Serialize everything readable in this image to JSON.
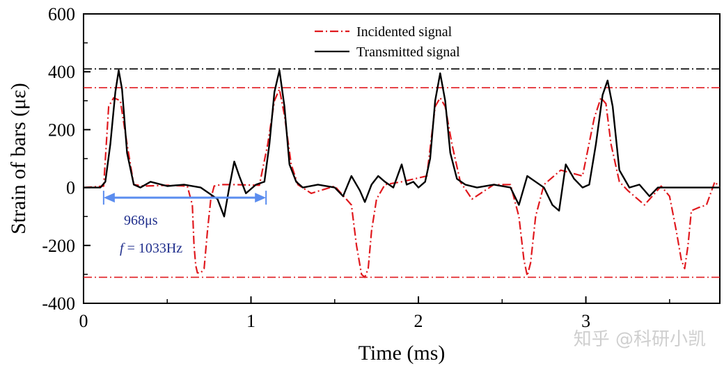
{
  "chart_data": {
    "type": "line",
    "xlabel": "Time (ms)",
    "ylabel": "Strain of bars (με)",
    "xlim": [
      0,
      3.8
    ],
    "ylim": [
      -400,
      600
    ],
    "xticks": [
      0,
      1,
      2,
      3
    ],
    "xtick_labels": [
      "0",
      "1",
      "2",
      "3"
    ],
    "yticks": [
      -400,
      -200,
      0,
      200,
      400,
      600
    ],
    "ytick_labels": [
      "-400",
      "-200",
      "0",
      "200",
      "400",
      "600"
    ],
    "grid": false,
    "legend": "top-center",
    "colors": {
      "incident": "#e0191e",
      "transmitted": "#000000",
      "annotation": "#5b8def",
      "annotation_text": "#1f2e8c"
    },
    "series": [
      {
        "name": "Incidented signal",
        "style": "dashdot",
        "x": [
          0,
          0.12,
          0.15,
          0.18,
          0.22,
          0.26,
          0.3,
          0.36,
          0.5,
          0.62,
          0.65,
          0.66,
          0.67,
          0.68,
          0.7,
          0.72,
          0.74,
          0.76,
          0.78,
          0.82,
          0.9,
          1.05,
          1.1,
          1.14,
          1.17,
          1.2,
          1.24,
          1.28,
          1.36,
          1.5,
          1.6,
          1.63,
          1.66,
          1.68,
          1.7,
          1.72,
          1.75,
          1.8,
          1.9,
          2.05,
          2.1,
          2.13,
          2.16,
          2.2,
          2.25,
          2.32,
          2.45,
          2.55,
          2.6,
          2.63,
          2.65,
          2.67,
          2.7,
          2.75,
          2.85,
          2.98,
          3.05,
          3.09,
          3.12,
          3.15,
          3.2,
          3.25,
          3.35,
          3.45,
          3.5,
          3.54,
          3.57,
          3.59,
          3.61,
          3.63,
          3.67,
          3.72,
          3.77,
          3.8
        ],
        "y": [
          0,
          5,
          280,
          310,
          300,
          150,
          10,
          5,
          8,
          5,
          -60,
          -200,
          -270,
          -295,
          -295,
          -280,
          -150,
          -40,
          5,
          10,
          10,
          8,
          150,
          300,
          340,
          250,
          80,
          10,
          -20,
          5,
          -60,
          -200,
          -300,
          -310,
          -280,
          -150,
          -40,
          10,
          20,
          40,
          280,
          310,
          280,
          150,
          20,
          -40,
          10,
          10,
          -100,
          -250,
          -305,
          -260,
          -100,
          10,
          60,
          40,
          240,
          310,
          290,
          150,
          20,
          -10,
          -60,
          5,
          -30,
          -150,
          -250,
          -280,
          -200,
          -80,
          -70,
          -60,
          20,
          0
        ]
      },
      {
        "name": "Transmitted signal",
        "style": "solid",
        "x": [
          0,
          0.1,
          0.13,
          0.16,
          0.19,
          0.21,
          0.23,
          0.26,
          0.3,
          0.34,
          0.4,
          0.5,
          0.6,
          0.7,
          0.8,
          0.84,
          0.87,
          0.9,
          0.93,
          0.97,
          1.03,
          1.08,
          1.11,
          1.14,
          1.17,
          1.2,
          1.23,
          1.27,
          1.31,
          1.4,
          1.5,
          1.55,
          1.6,
          1.65,
          1.68,
          1.72,
          1.76,
          1.8,
          1.85,
          1.9,
          1.93,
          1.97,
          2.0,
          2.04,
          2.07,
          2.1,
          2.13,
          2.16,
          2.19,
          2.23,
          2.28,
          2.35,
          2.45,
          2.55,
          2.6,
          2.65,
          2.7,
          2.75,
          2.8,
          2.84,
          2.88,
          2.93,
          2.98,
          3.02,
          3.06,
          3.1,
          3.13,
          3.16,
          3.2,
          3.26,
          3.32,
          3.38,
          3.43,
          3.46,
          3.5,
          3.6,
          3.7,
          3.8
        ],
        "y": [
          0,
          0,
          20,
          150,
          330,
          405,
          340,
          120,
          10,
          0,
          20,
          5,
          10,
          0,
          -40,
          -100,
          0,
          90,
          40,
          -20,
          10,
          20,
          150,
          330,
          405,
          280,
          80,
          20,
          0,
          10,
          0,
          -30,
          40,
          -10,
          -50,
          10,
          40,
          20,
          0,
          80,
          10,
          20,
          0,
          20,
          100,
          300,
          395,
          300,
          120,
          30,
          10,
          0,
          10,
          0,
          -60,
          40,
          20,
          0,
          -60,
          -80,
          80,
          30,
          0,
          10,
          150,
          320,
          370,
          280,
          60,
          0,
          10,
          -30,
          0,
          0,
          0,
          0,
          0,
          0
        ]
      }
    ],
    "reference_lines": [
      {
        "axis": "y",
        "value": 410,
        "color": "#000000",
        "style": "dashdot"
      },
      {
        "axis": "y",
        "value": 345,
        "color": "#e0191e",
        "style": "dashdot"
      },
      {
        "axis": "y",
        "value": -310,
        "color": "#e0191e",
        "style": "dashdot"
      }
    ],
    "annotations": {
      "period_arrow": {
        "x_start": 0.12,
        "x_end": 1.09,
        "y": -35
      },
      "period_text": "968μs",
      "freq_symbol": "f",
      "freq_text": " = 1033Hz"
    }
  },
  "watermark": "知乎 @科研小凯"
}
